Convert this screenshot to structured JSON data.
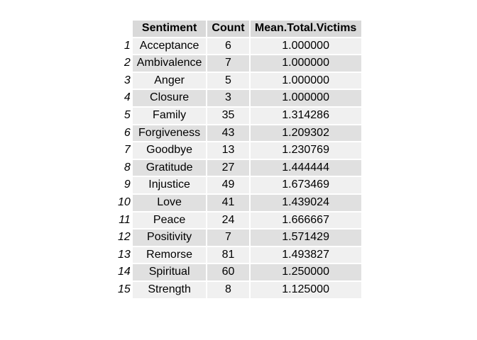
{
  "chart_data": {
    "type": "table",
    "columns": [
      "Sentiment",
      "Count",
      "Mean.Total.Victims"
    ],
    "rows": [
      {
        "id": "1",
        "sentiment": "Acceptance",
        "count": "6",
        "mean": "1.000000"
      },
      {
        "id": "2",
        "sentiment": "Ambivalence",
        "count": "7",
        "mean": "1.000000"
      },
      {
        "id": "3",
        "sentiment": "Anger",
        "count": "5",
        "mean": "1.000000"
      },
      {
        "id": "4",
        "sentiment": "Closure",
        "count": "3",
        "mean": "1.000000"
      },
      {
        "id": "5",
        "sentiment": "Family",
        "count": "35",
        "mean": "1.314286"
      },
      {
        "id": "6",
        "sentiment": "Forgiveness",
        "count": "43",
        "mean": "1.209302"
      },
      {
        "id": "7",
        "sentiment": "Goodbye",
        "count": "13",
        "mean": "1.230769"
      },
      {
        "id": "8",
        "sentiment": "Gratitude",
        "count": "27",
        "mean": "1.444444"
      },
      {
        "id": "9",
        "sentiment": "Injustice",
        "count": "49",
        "mean": "1.673469"
      },
      {
        "id": "10",
        "sentiment": "Love",
        "count": "41",
        "mean": "1.439024"
      },
      {
        "id": "11",
        "sentiment": "Peace",
        "count": "24",
        "mean": "1.666667"
      },
      {
        "id": "12",
        "sentiment": "Positivity",
        "count": "7",
        "mean": "1.571429"
      },
      {
        "id": "13",
        "sentiment": "Remorse",
        "count": "81",
        "mean": "1.493827"
      },
      {
        "id": "14",
        "sentiment": "Spiritual",
        "count": "60",
        "mean": "1.250000"
      },
      {
        "id": "15",
        "sentiment": "Strength",
        "count": "8",
        "mean": "1.125000"
      }
    ]
  },
  "colors": {
    "header_fill": "#d9d9d9",
    "row_fill_light": "#f0f0f0",
    "row_fill_dark": "#e0e0e0"
  }
}
